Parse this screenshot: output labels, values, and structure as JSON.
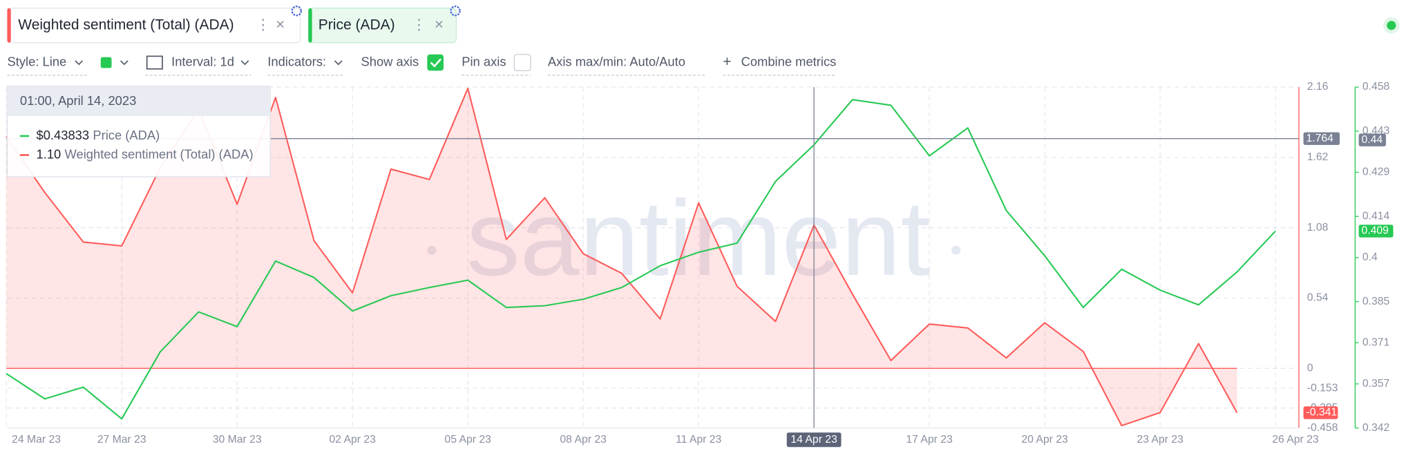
{
  "tabs": [
    {
      "label": "Weighted sentiment (Total) (ADA)",
      "color": "#ff5b5b"
    },
    {
      "label": "Price (ADA)",
      "color": "#26c953"
    }
  ],
  "toolbar": {
    "style": "Style: Line",
    "interval": "Interval: 1d",
    "indicators": "Indicators:",
    "show_axis": "Show axis",
    "pin_axis": "Pin axis",
    "axis_minmax": "Axis max/min: Auto/Auto",
    "combine": "Combine metrics"
  },
  "watermark": "santiment",
  "tooltip": {
    "date": "01:00, April 14, 2023",
    "items": [
      {
        "name": "Price (ADA)",
        "value": 0.43833,
        "value_label": "$0.43833",
        "color": "#26c953"
      },
      {
        "name": "Weighted sentiment (Total) (ADA)",
        "value": 1.1,
        "value_label": "1.10",
        "color": "#ff5b5b"
      }
    ]
  },
  "chart_data": {
    "type": "line",
    "categories": [
      "24 Mar 23",
      null,
      null,
      "27 Mar 23",
      null,
      null,
      "30 Mar 23",
      null,
      null,
      "02 Apr 23",
      null,
      null,
      "05 Apr 23",
      null,
      null,
      "08 Apr 23",
      null,
      null,
      "11 Apr 23",
      null,
      null,
      "14 Apr 23",
      null,
      null,
      "17 Apr 23",
      null,
      null,
      "20 Apr 23",
      null,
      null,
      "23 Apr 23",
      null,
      null,
      "26 Apr 23"
    ],
    "series": [
      {
        "name": "Weighted sentiment (Total) (ADA)",
        "color": "#ff5b5b",
        "area": true,
        "values": [
          1.78,
          1.35,
          0.97,
          0.94,
          1.54,
          1.99,
          1.26,
          2.08,
          0.98,
          0.58,
          1.53,
          1.45,
          2.15,
          0.99,
          1.31,
          0.88,
          0.73,
          0.38,
          1.27,
          0.63,
          0.36,
          1.1,
          0.57,
          0.06,
          0.34,
          0.31,
          0.08,
          0.35,
          0.13,
          -0.44,
          -0.34,
          0.19,
          -0.341,
          null
        ]
      },
      {
        "name": "Price (ADA)",
        "color": "#26c953",
        "axis": "y2",
        "values": [
          0.3605,
          0.3519,
          0.3559,
          0.3451,
          0.3679,
          0.3815,
          0.3765,
          0.3988,
          0.3932,
          0.3818,
          0.387,
          0.3898,
          0.3923,
          0.383,
          0.3836,
          0.3858,
          0.3898,
          0.3972,
          0.4018,
          0.4049,
          0.4259,
          0.43833,
          0.4537,
          0.4518,
          0.4346,
          0.4441,
          0.416,
          0.4006,
          0.383,
          0.396,
          0.3889,
          0.3839,
          0.3951,
          0.409
        ]
      }
    ],
    "ylim": [
      -0.458,
      2.16
    ],
    "yticks": [
      2.16,
      1.62,
      1.08,
      0.54,
      0,
      -0.153,
      -0.305,
      -0.458
    ],
    "y2lim": [
      0.342,
      0.458
    ],
    "y2ticks": [
      0.458,
      0.443,
      0.429,
      0.414,
      0.4,
      0.385,
      0.371,
      0.357,
      0.342
    ],
    "grid": true,
    "crosshair": {
      "y": 1.764,
      "y2": 0.44
    }
  }
}
